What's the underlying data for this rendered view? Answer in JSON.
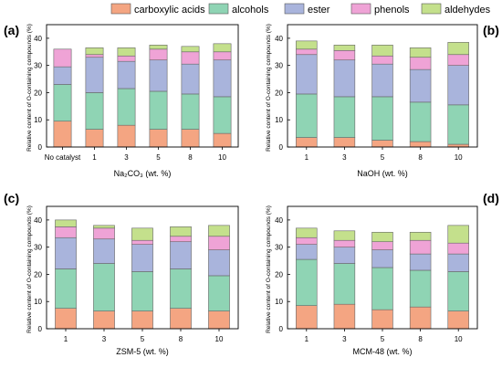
{
  "legend": {
    "placement": "top-center",
    "items": [
      {
        "label": "carboxylic acids",
        "color": "#F4A582"
      },
      {
        "label": "alcohols",
        "color": "#8FD4B4"
      },
      {
        "label": "ester",
        "color": "#A9B4DC"
      },
      {
        "label": "phenols",
        "color": "#EFA3D6"
      },
      {
        "label": "aldehydes",
        "color": "#C4E08C"
      }
    ]
  },
  "chart_data": [
    {
      "type": "bar",
      "stacked": true,
      "panel_label": "(a)",
      "xlabel": "Na₂CO₃ (wt. %)",
      "ylabel": "Relative content of O-containing compounds (%)",
      "ylim": [
        0,
        45
      ],
      "yticks": [
        "0",
        "10",
        "20",
        "30",
        "40"
      ],
      "categories": [
        "No catalyst",
        "1",
        "3",
        "5",
        "8",
        "10"
      ],
      "series": [
        {
          "name": "carboxylic acids",
          "values": [
            9.5,
            6.5,
            8.0,
            6.5,
            6.5,
            5.0
          ]
        },
        {
          "name": "alcohols",
          "values": [
            13.5,
            13.5,
            13.5,
            14.0,
            13.0,
            13.5
          ]
        },
        {
          "name": "ester",
          "values": [
            6.5,
            13.0,
            10.0,
            11.5,
            11.0,
            13.5
          ]
        },
        {
          "name": "phenols",
          "values": [
            6.5,
            1.0,
            2.0,
            4.0,
            4.5,
            3.0
          ]
        },
        {
          "name": "aldehydes",
          "values": [
            0.0,
            2.5,
            3.0,
            1.5,
            2.0,
            3.0
          ]
        }
      ]
    },
    {
      "type": "bar",
      "stacked": true,
      "panel_label": "(b)",
      "xlabel": "NaOH (wt. %)",
      "ylabel": "Relative content of O-containing compounds (%)",
      "ylim": [
        0,
        45
      ],
      "yticks": [
        "0",
        "10",
        "20",
        "30",
        "40"
      ],
      "categories": [
        "1",
        "3",
        "5",
        "8",
        "10"
      ],
      "series": [
        {
          "name": "carboxylic acids",
          "values": [
            3.5,
            3.5,
            2.5,
            2.0,
            1.0
          ]
        },
        {
          "name": "alcohols",
          "values": [
            16.0,
            15.0,
            16.0,
            14.5,
            14.5
          ]
        },
        {
          "name": "ester",
          "values": [
            14.5,
            13.5,
            12.0,
            12.0,
            14.5
          ]
        },
        {
          "name": "phenols",
          "values": [
            2.0,
            3.5,
            3.0,
            4.5,
            4.0
          ]
        },
        {
          "name": "aldehydes",
          "values": [
            3.0,
            2.0,
            4.0,
            3.5,
            4.5
          ]
        }
      ]
    },
    {
      "type": "bar",
      "stacked": true,
      "panel_label": "(c)",
      "xlabel": "ZSM-5 (wt. %)",
      "ylabel": "Relative content of O-containing compounds (%)",
      "ylim": [
        0,
        45
      ],
      "yticks": [
        "0",
        "10",
        "20",
        "30",
        "40"
      ],
      "categories": [
        "1",
        "3",
        "5",
        "8",
        "10"
      ],
      "series": [
        {
          "name": "carboxylic acids",
          "values": [
            7.5,
            6.5,
            6.5,
            7.5,
            6.5
          ]
        },
        {
          "name": "alcohols",
          "values": [
            14.5,
            17.5,
            14.5,
            14.5,
            13.0
          ]
        },
        {
          "name": "ester",
          "values": [
            11.5,
            9.0,
            10.0,
            10.0,
            9.5
          ]
        },
        {
          "name": "phenols",
          "values": [
            4.0,
            4.0,
            1.5,
            2.0,
            5.0
          ]
        },
        {
          "name": "aldehydes",
          "values": [
            2.5,
            1.0,
            4.5,
            3.5,
            4.0
          ]
        }
      ]
    },
    {
      "type": "bar",
      "stacked": true,
      "panel_label": "(d)",
      "xlabel": "MCM-48 (wt. %)",
      "ylabel": "Relative content of O-containing compounds (%)",
      "ylim": [
        0,
        45
      ],
      "yticks": [
        "0",
        "10",
        "20",
        "30",
        "40"
      ],
      "categories": [
        "1",
        "3",
        "5",
        "8",
        "10"
      ],
      "series": [
        {
          "name": "carboxylic acids",
          "values": [
            8.5,
            9.0,
            7.0,
            8.0,
            6.5
          ]
        },
        {
          "name": "alcohols",
          "values": [
            17.0,
            15.0,
            15.5,
            13.5,
            14.5
          ]
        },
        {
          "name": "ester",
          "values": [
            5.5,
            6.0,
            6.5,
            6.0,
            6.5
          ]
        },
        {
          "name": "phenols",
          "values": [
            2.5,
            2.5,
            3.0,
            5.0,
            4.0
          ]
        },
        {
          "name": "aldehydes",
          "values": [
            3.5,
            3.5,
            3.5,
            3.0,
            6.5
          ]
        }
      ]
    }
  ]
}
